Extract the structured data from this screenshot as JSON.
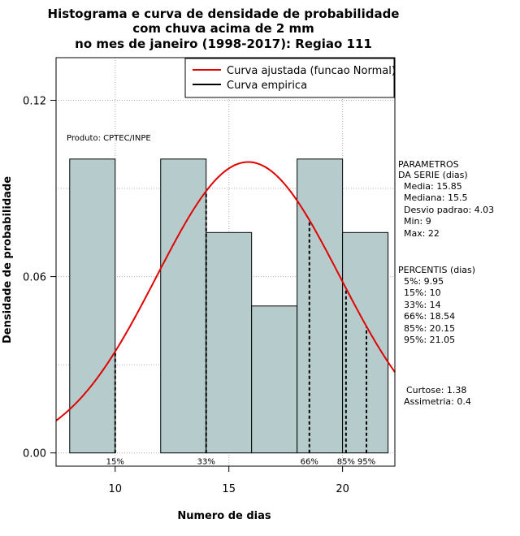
{
  "chart_data": {
    "type": "bar",
    "title_lines": [
      "Histograma e curva de densidade de probabilidade",
      "com chuva acima de 2 mm",
      "no mes de janeiro (1998-2017): Regiao 111"
    ],
    "xlabel": "Numero de dias",
    "ylabel": "Densidade de probabilidade",
    "xlim": [
      7.4,
      22.3
    ],
    "ylim": [
      -0.0045,
      0.1345
    ],
    "x_ticks": [
      10,
      15,
      20
    ],
    "y_ticks": [
      0.0,
      0.06,
      0.12
    ],
    "x_tick_labels": [
      "10",
      "15",
      "20"
    ],
    "y_tick_labels": [
      "0.00",
      "0.06",
      "0.12"
    ],
    "grid": true,
    "bin_edges": [
      8,
      10,
      12,
      14,
      16,
      18,
      20,
      22
    ],
    "densities": [
      0.1,
      0.0,
      0.1,
      0.075,
      0.05,
      0.1,
      0.075
    ],
    "bar_color": "#b6cccc",
    "normal_fit": {
      "mean": 15.85,
      "sd": 4.03,
      "color": "#e00000"
    },
    "empirical_color": "#000000",
    "percentile_markers": [
      {
        "x": 10,
        "label": "15%"
      },
      {
        "x": 14,
        "label": "33%"
      },
      {
        "x": 18.54,
        "label": "66%"
      },
      {
        "x": 20.15,
        "label": "85%"
      },
      {
        "x": 21.05,
        "label": "95%"
      }
    ],
    "legend": {
      "placement": "top-right",
      "entries": [
        "Curva ajustada (funcao Normal)",
        "Curva empirica"
      ]
    },
    "product_label": "Produto: CPTEC/INPE",
    "parameters_block": [
      "PARAMETROS",
      "DA SERIE (dias)",
      "  Media: 15.85",
      "  Mediana: 15.5",
      "  Desvio padrao: 4.03",
      "  Min: 9",
      "  Max: 22"
    ],
    "percentiles_block": [
      "PERCENTIS (dias)",
      "  5%: 9.95",
      "  15%: 10",
      "  33%: 14",
      "  66%: 18.54",
      "  85%: 20.15",
      "  95%: 21.05"
    ],
    "shape_block": [
      "Curtose: 1.38",
      "Assimetria: 0.4"
    ]
  }
}
